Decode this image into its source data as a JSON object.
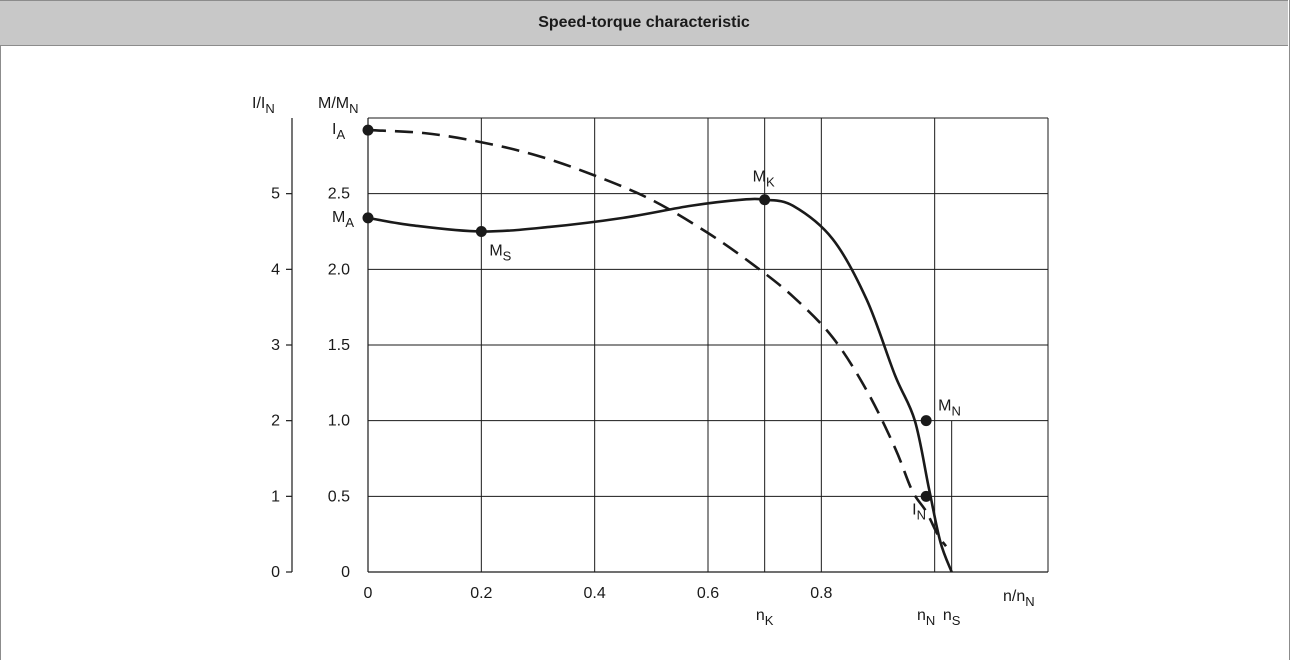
{
  "header": {
    "title": "Speed-torque characteristic"
  },
  "chart_data": {
    "type": "line",
    "title": "Speed-torque characteristic",
    "xlabel": {
      "main": "n/n",
      "sub": "N"
    },
    "y_left_label": {
      "main": "I/I",
      "sub": "N"
    },
    "y_right_label": {
      "main": "M/M",
      "sub": "N"
    },
    "xlim": [
      0,
      1.2
    ],
    "ylim_torque": [
      0,
      3.0
    ],
    "ylim_current": [
      0,
      6
    ],
    "x_ticks": [
      0,
      0.2,
      0.4,
      0.6,
      0.8
    ],
    "x_tick_labels": [
      "0",
      "0.2",
      "0.4",
      "0.6",
      "0.8"
    ],
    "torque_ticks": [
      0,
      0.5,
      1.0,
      1.5,
      2.0,
      2.5
    ],
    "torque_tick_labels": [
      "0",
      "0.5",
      "1.0",
      "1.5",
      "2.0",
      "2.5"
    ],
    "current_ticks": [
      0,
      1,
      2,
      3,
      4,
      5
    ],
    "current_tick_labels": [
      "0",
      "1",
      "2",
      "3",
      "4",
      "5"
    ],
    "grid_x": [
      0,
      0.2,
      0.4,
      0.6,
      0.7,
      0.8,
      1.0,
      1.2
    ],
    "grid_torque": [
      0.5,
      1.0,
      1.5,
      2.0,
      2.5,
      3.0
    ],
    "series": [
      {
        "style": "solid",
        "points": [
          [
            0,
            2.34
          ],
          [
            0.08,
            2.29
          ],
          [
            0.2,
            2.25
          ],
          [
            0.32,
            2.28
          ],
          [
            0.45,
            2.34
          ],
          [
            0.57,
            2.42
          ],
          [
            0.66,
            2.46
          ],
          [
            0.7,
            2.46
          ],
          [
            0.75,
            2.42
          ],
          [
            0.82,
            2.2
          ],
          [
            0.88,
            1.8
          ],
          [
            0.93,
            1.3
          ],
          [
            0.965,
            1.0
          ],
          [
            0.99,
            0.55
          ],
          [
            1.01,
            0.2
          ],
          [
            1.03,
            0
          ]
        ]
      },
      {
        "style": "dashed",
        "points": [
          [
            0,
            2.92
          ],
          [
            0.1,
            2.9
          ],
          [
            0.2,
            2.84
          ],
          [
            0.3,
            2.75
          ],
          [
            0.4,
            2.62
          ],
          [
            0.5,
            2.46
          ],
          [
            0.6,
            2.24
          ],
          [
            0.68,
            2.03
          ],
          [
            0.75,
            1.82
          ],
          [
            0.82,
            1.55
          ],
          [
            0.88,
            1.2
          ],
          [
            0.93,
            0.82
          ],
          [
            0.96,
            0.54
          ],
          [
            0.985,
            0.4
          ],
          [
            1.005,
            0.25
          ],
          [
            1.02,
            0.17
          ]
        ]
      }
    ],
    "points": [
      {
        "x": 0,
        "y": 2.92,
        "label": "I",
        "sub": "A",
        "anchor": "left"
      },
      {
        "x": 0,
        "y": 2.34,
        "label": "M",
        "sub": "A",
        "anchor": "left"
      },
      {
        "x": 0.2,
        "y": 2.25,
        "label": "M",
        "sub": "S",
        "anchor": "below-right"
      },
      {
        "x": 0.7,
        "y": 2.46,
        "label": "M",
        "sub": "K",
        "anchor": "above"
      },
      {
        "x": 0.985,
        "y": 1.0,
        "label": "M",
        "sub": "N",
        "anchor": "above-right"
      },
      {
        "x": 0.985,
        "y": 0.5,
        "label": "I",
        "sub": "N",
        "anchor": "below-left"
      }
    ],
    "x_markers": [
      {
        "x": 0.7,
        "label": "n",
        "sub": "K"
      },
      {
        "x": 0.985,
        "label": "n",
        "sub": "N"
      },
      {
        "x": 1.03,
        "label": "n",
        "sub": "S"
      }
    ]
  }
}
